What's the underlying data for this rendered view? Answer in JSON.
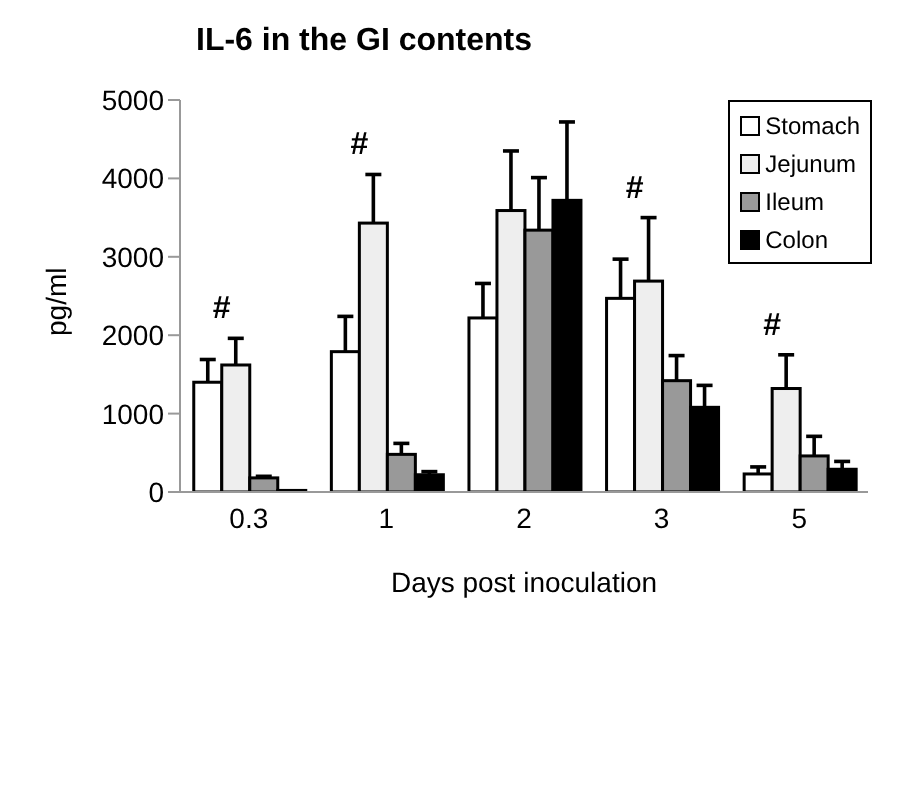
{
  "chart_data": {
    "type": "bar",
    "title": "IL-6 in the GI contents",
    "xlabel": "Days post inoculation",
    "ylabel": "pg/ml",
    "categories": [
      "0.3",
      "1",
      "2",
      "3",
      "5"
    ],
    "series": [
      {
        "name": "Stomach",
        "color": "#ffffff",
        "values": [
          1400,
          1790,
          2220,
          2470,
          230
        ],
        "errors": [
          290,
          450,
          440,
          500,
          90
        ]
      },
      {
        "name": "Jejunum",
        "color": "#eeeeee",
        "values": [
          1620,
          3430,
          3590,
          2690,
          1320
        ],
        "errors": [
          340,
          620,
          760,
          810,
          430
        ]
      },
      {
        "name": "Ileum",
        "color": "#999999",
        "values": [
          180,
          480,
          3340,
          1420,
          460
        ],
        "errors": [
          20,
          140,
          670,
          320,
          250
        ]
      },
      {
        "name": "Colon",
        "color": "#000000",
        "values": [
          20,
          220,
          3720,
          1080,
          290
        ],
        "errors": [
          null,
          40,
          1000,
          280,
          100
        ]
      }
    ],
    "ylim": [
      0,
      5000
    ],
    "yticks": [
      0,
      1000,
      2000,
      3000,
      4000,
      5000
    ],
    "grid": false,
    "legend": "top right",
    "annotations": [
      {
        "text": "#",
        "x": "0.3",
        "y": 1620
      },
      {
        "text": "#",
        "x": "1",
        "y": 3430
      },
      {
        "text": "#",
        "x": "3",
        "y": 2690
      },
      {
        "text": "#",
        "x": "5",
        "y": 1320
      }
    ]
  }
}
